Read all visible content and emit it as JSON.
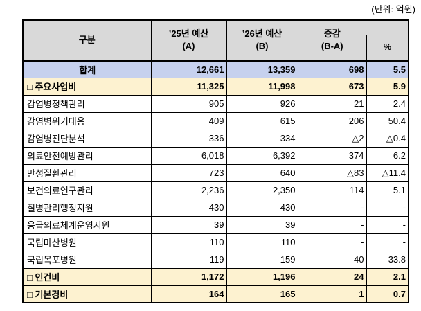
{
  "unit_label": "(단위: 억원)",
  "table": {
    "headers": {
      "category": "구분",
      "budget_a": "’25년 예산\n(A)",
      "budget_b": "’26년 예산\n(B)",
      "diff": "증감\n(B-A)",
      "pct": "%"
    },
    "rows": [
      {
        "label": "합계",
        "a": "12,661",
        "b": "13,359",
        "diff": "698",
        "pct": "5.5"
      },
      {
        "label": "□ 주요사업비",
        "a": "11,325",
        "b": "11,998",
        "diff": "673",
        "pct": "5.9"
      },
      {
        "label": "감염병정책관리",
        "a": "905",
        "b": "926",
        "diff": "21",
        "pct": "2.4"
      },
      {
        "label": "감염병위기대응",
        "a": "409",
        "b": "615",
        "diff": "206",
        "pct": "50.4"
      },
      {
        "label": "감염병진단분석",
        "a": "336",
        "b": "334",
        "diff": "△2",
        "pct": "△0.4"
      },
      {
        "label": "의료안전예방관리",
        "a": "6,018",
        "b": "6,392",
        "diff": "374",
        "pct": "6.2"
      },
      {
        "label": "만성질환관리",
        "a": "723",
        "b": "640",
        "diff": "△83",
        "pct": "△11.4"
      },
      {
        "label": "보건의료연구관리",
        "a": "2,236",
        "b": "2,350",
        "diff": "114",
        "pct": "5.1"
      },
      {
        "label": "질병관리행정지원",
        "a": "430",
        "b": "430",
        "diff": "-",
        "pct": "-"
      },
      {
        "label": "응급의료체계운영지원",
        "a": "39",
        "b": "39",
        "diff": "-",
        "pct": "-"
      },
      {
        "label": "국립마산병원",
        "a": "110",
        "b": "110",
        "diff": "-",
        "pct": "-"
      },
      {
        "label": "국립목포병원",
        "a": "119",
        "b": "159",
        "diff": "40",
        "pct": "33.8"
      },
      {
        "label": "□ 인건비",
        "a": "1,172",
        "b": "1,196",
        "diff": "24",
        "pct": "2.1"
      },
      {
        "label": "□ 기본경비",
        "a": "164",
        "b": "165",
        "diff": "1",
        "pct": "0.7"
      }
    ]
  },
  "colors": {
    "header_bg": "#d9d9d9",
    "total_row_bg": "#c6d1ee",
    "section_row_bg": "#fdf2d0",
    "border": "#000000"
  }
}
